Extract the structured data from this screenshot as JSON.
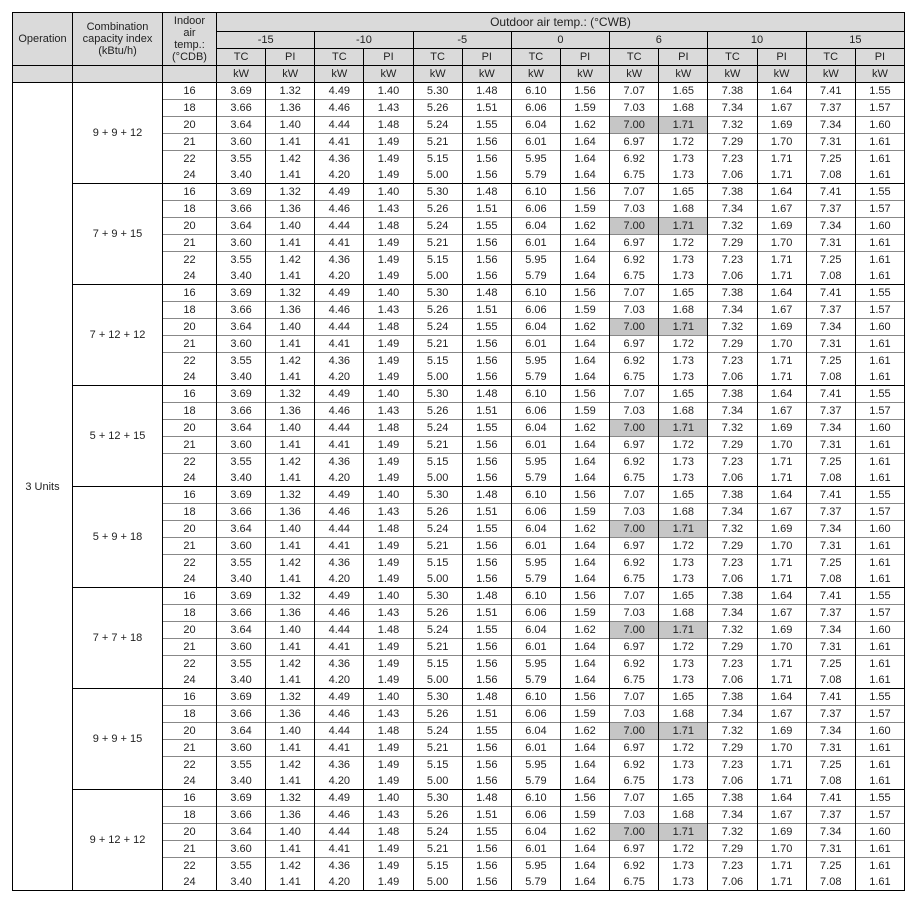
{
  "headers": {
    "operation": "Operation",
    "combo_l1": "Combination",
    "combo_l2": "capacity index",
    "combo_l3": "(kBtu/h)",
    "iat_l1": "Indoor",
    "iat_l2": "air temp.:",
    "iat_l3": "(°CDB)",
    "outdoor_title": "Outdoor air temp.: (°CWB)",
    "tc": "TC",
    "pi": "PI",
    "kw": "kW"
  },
  "outdoor_temps": [
    "-15",
    "-10",
    "-5",
    "0",
    "6",
    "10",
    "15"
  ],
  "operation_label": "3 Units",
  "indoor_temps": [
    "16",
    "18",
    "20",
    "21",
    "22",
    "24"
  ],
  "highlight_row_index": 2,
  "highlight_col_index": 4,
  "combos": [
    {
      "label": "9 + 9 + 12",
      "rows": [
        [
          "3.69",
          "1.32",
          "4.49",
          "1.40",
          "5.30",
          "1.48",
          "6.10",
          "1.56",
          "7.07",
          "1.65",
          "7.38",
          "1.64",
          "7.41",
          "1.55"
        ],
        [
          "3.66",
          "1.36",
          "4.46",
          "1.43",
          "5.26",
          "1.51",
          "6.06",
          "1.59",
          "7.03",
          "1.68",
          "7.34",
          "1.67",
          "7.37",
          "1.57"
        ],
        [
          "3.64",
          "1.40",
          "4.44",
          "1.48",
          "5.24",
          "1.55",
          "6.04",
          "1.62",
          "7.00",
          "1.71",
          "7.32",
          "1.69",
          "7.34",
          "1.60"
        ],
        [
          "3.60",
          "1.41",
          "4.41",
          "1.49",
          "5.21",
          "1.56",
          "6.01",
          "1.64",
          "6.97",
          "1.72",
          "7.29",
          "1.70",
          "7.31",
          "1.61"
        ],
        [
          "3.55",
          "1.42",
          "4.36",
          "1.49",
          "5.15",
          "1.56",
          "5.95",
          "1.64",
          "6.92",
          "1.73",
          "7.23",
          "1.71",
          "7.25",
          "1.61"
        ],
        [
          "3.40",
          "1.41",
          "4.20",
          "1.49",
          "5.00",
          "1.56",
          "5.79",
          "1.64",
          "6.75",
          "1.73",
          "7.06",
          "1.71",
          "7.08",
          "1.61"
        ]
      ]
    },
    {
      "label": "7 + 9 + 15",
      "rows": [
        [
          "3.69",
          "1.32",
          "4.49",
          "1.40",
          "5.30",
          "1.48",
          "6.10",
          "1.56",
          "7.07",
          "1.65",
          "7.38",
          "1.64",
          "7.41",
          "1.55"
        ],
        [
          "3.66",
          "1.36",
          "4.46",
          "1.43",
          "5.26",
          "1.51",
          "6.06",
          "1.59",
          "7.03",
          "1.68",
          "7.34",
          "1.67",
          "7.37",
          "1.57"
        ],
        [
          "3.64",
          "1.40",
          "4.44",
          "1.48",
          "5.24",
          "1.55",
          "6.04",
          "1.62",
          "7.00",
          "1.71",
          "7.32",
          "1.69",
          "7.34",
          "1.60"
        ],
        [
          "3.60",
          "1.41",
          "4.41",
          "1.49",
          "5.21",
          "1.56",
          "6.01",
          "1.64",
          "6.97",
          "1.72",
          "7.29",
          "1.70",
          "7.31",
          "1.61"
        ],
        [
          "3.55",
          "1.42",
          "4.36",
          "1.49",
          "5.15",
          "1.56",
          "5.95",
          "1.64",
          "6.92",
          "1.73",
          "7.23",
          "1.71",
          "7.25",
          "1.61"
        ],
        [
          "3.40",
          "1.41",
          "4.20",
          "1.49",
          "5.00",
          "1.56",
          "5.79",
          "1.64",
          "6.75",
          "1.73",
          "7.06",
          "1.71",
          "7.08",
          "1.61"
        ]
      ]
    },
    {
      "label": "7 + 12 + 12",
      "rows": [
        [
          "3.69",
          "1.32",
          "4.49",
          "1.40",
          "5.30",
          "1.48",
          "6.10",
          "1.56",
          "7.07",
          "1.65",
          "7.38",
          "1.64",
          "7.41",
          "1.55"
        ],
        [
          "3.66",
          "1.36",
          "4.46",
          "1.43",
          "5.26",
          "1.51",
          "6.06",
          "1.59",
          "7.03",
          "1.68",
          "7.34",
          "1.67",
          "7.37",
          "1.57"
        ],
        [
          "3.64",
          "1.40",
          "4.44",
          "1.48",
          "5.24",
          "1.55",
          "6.04",
          "1.62",
          "7.00",
          "1.71",
          "7.32",
          "1.69",
          "7.34",
          "1.60"
        ],
        [
          "3.60",
          "1.41",
          "4.41",
          "1.49",
          "5.21",
          "1.56",
          "6.01",
          "1.64",
          "6.97",
          "1.72",
          "7.29",
          "1.70",
          "7.31",
          "1.61"
        ],
        [
          "3.55",
          "1.42",
          "4.36",
          "1.49",
          "5.15",
          "1.56",
          "5.95",
          "1.64",
          "6.92",
          "1.73",
          "7.23",
          "1.71",
          "7.25",
          "1.61"
        ],
        [
          "3.40",
          "1.41",
          "4.20",
          "1.49",
          "5.00",
          "1.56",
          "5.79",
          "1.64",
          "6.75",
          "1.73",
          "7.06",
          "1.71",
          "7.08",
          "1.61"
        ]
      ]
    },
    {
      "label": "5 + 12 + 15",
      "rows": [
        [
          "3.69",
          "1.32",
          "4.49",
          "1.40",
          "5.30",
          "1.48",
          "6.10",
          "1.56",
          "7.07",
          "1.65",
          "7.38",
          "1.64",
          "7.41",
          "1.55"
        ],
        [
          "3.66",
          "1.36",
          "4.46",
          "1.43",
          "5.26",
          "1.51",
          "6.06",
          "1.59",
          "7.03",
          "1.68",
          "7.34",
          "1.67",
          "7.37",
          "1.57"
        ],
        [
          "3.64",
          "1.40",
          "4.44",
          "1.48",
          "5.24",
          "1.55",
          "6.04",
          "1.62",
          "7.00",
          "1.71",
          "7.32",
          "1.69",
          "7.34",
          "1.60"
        ],
        [
          "3.60",
          "1.41",
          "4.41",
          "1.49",
          "5.21",
          "1.56",
          "6.01",
          "1.64",
          "6.97",
          "1.72",
          "7.29",
          "1.70",
          "7.31",
          "1.61"
        ],
        [
          "3.55",
          "1.42",
          "4.36",
          "1.49",
          "5.15",
          "1.56",
          "5.95",
          "1.64",
          "6.92",
          "1.73",
          "7.23",
          "1.71",
          "7.25",
          "1.61"
        ],
        [
          "3.40",
          "1.41",
          "4.20",
          "1.49",
          "5.00",
          "1.56",
          "5.79",
          "1.64",
          "6.75",
          "1.73",
          "7.06",
          "1.71",
          "7.08",
          "1.61"
        ]
      ]
    },
    {
      "label": "5 + 9 + 18",
      "rows": [
        [
          "3.69",
          "1.32",
          "4.49",
          "1.40",
          "5.30",
          "1.48",
          "6.10",
          "1.56",
          "7.07",
          "1.65",
          "7.38",
          "1.64",
          "7.41",
          "1.55"
        ],
        [
          "3.66",
          "1.36",
          "4.46",
          "1.43",
          "5.26",
          "1.51",
          "6.06",
          "1.59",
          "7.03",
          "1.68",
          "7.34",
          "1.67",
          "7.37",
          "1.57"
        ],
        [
          "3.64",
          "1.40",
          "4.44",
          "1.48",
          "5.24",
          "1.55",
          "6.04",
          "1.62",
          "7.00",
          "1.71",
          "7.32",
          "1.69",
          "7.34",
          "1.60"
        ],
        [
          "3.60",
          "1.41",
          "4.41",
          "1.49",
          "5.21",
          "1.56",
          "6.01",
          "1.64",
          "6.97",
          "1.72",
          "7.29",
          "1.70",
          "7.31",
          "1.61"
        ],
        [
          "3.55",
          "1.42",
          "4.36",
          "1.49",
          "5.15",
          "1.56",
          "5.95",
          "1.64",
          "6.92",
          "1.73",
          "7.23",
          "1.71",
          "7.25",
          "1.61"
        ],
        [
          "3.40",
          "1.41",
          "4.20",
          "1.49",
          "5.00",
          "1.56",
          "5.79",
          "1.64",
          "6.75",
          "1.73",
          "7.06",
          "1.71",
          "7.08",
          "1.61"
        ]
      ]
    },
    {
      "label": "7 + 7 + 18",
      "rows": [
        [
          "3.69",
          "1.32",
          "4.49",
          "1.40",
          "5.30",
          "1.48",
          "6.10",
          "1.56",
          "7.07",
          "1.65",
          "7.38",
          "1.64",
          "7.41",
          "1.55"
        ],
        [
          "3.66",
          "1.36",
          "4.46",
          "1.43",
          "5.26",
          "1.51",
          "6.06",
          "1.59",
          "7.03",
          "1.68",
          "7.34",
          "1.67",
          "7.37",
          "1.57"
        ],
        [
          "3.64",
          "1.40",
          "4.44",
          "1.48",
          "5.24",
          "1.55",
          "6.04",
          "1.62",
          "7.00",
          "1.71",
          "7.32",
          "1.69",
          "7.34",
          "1.60"
        ],
        [
          "3.60",
          "1.41",
          "4.41",
          "1.49",
          "5.21",
          "1.56",
          "6.01",
          "1.64",
          "6.97",
          "1.72",
          "7.29",
          "1.70",
          "7.31",
          "1.61"
        ],
        [
          "3.55",
          "1.42",
          "4.36",
          "1.49",
          "5.15",
          "1.56",
          "5.95",
          "1.64",
          "6.92",
          "1.73",
          "7.23",
          "1.71",
          "7.25",
          "1.61"
        ],
        [
          "3.40",
          "1.41",
          "4.20",
          "1.49",
          "5.00",
          "1.56",
          "5.79",
          "1.64",
          "6.75",
          "1.73",
          "7.06",
          "1.71",
          "7.08",
          "1.61"
        ]
      ]
    },
    {
      "label": "9 + 9 + 15",
      "rows": [
        [
          "3.69",
          "1.32",
          "4.49",
          "1.40",
          "5.30",
          "1.48",
          "6.10",
          "1.56",
          "7.07",
          "1.65",
          "7.38",
          "1.64",
          "7.41",
          "1.55"
        ],
        [
          "3.66",
          "1.36",
          "4.46",
          "1.43",
          "5.26",
          "1.51",
          "6.06",
          "1.59",
          "7.03",
          "1.68",
          "7.34",
          "1.67",
          "7.37",
          "1.57"
        ],
        [
          "3.64",
          "1.40",
          "4.44",
          "1.48",
          "5.24",
          "1.55",
          "6.04",
          "1.62",
          "7.00",
          "1.71",
          "7.32",
          "1.69",
          "7.34",
          "1.60"
        ],
        [
          "3.60",
          "1.41",
          "4.41",
          "1.49",
          "5.21",
          "1.56",
          "6.01",
          "1.64",
          "6.97",
          "1.72",
          "7.29",
          "1.70",
          "7.31",
          "1.61"
        ],
        [
          "3.55",
          "1.42",
          "4.36",
          "1.49",
          "5.15",
          "1.56",
          "5.95",
          "1.64",
          "6.92",
          "1.73",
          "7.23",
          "1.71",
          "7.25",
          "1.61"
        ],
        [
          "3.40",
          "1.41",
          "4.20",
          "1.49",
          "5.00",
          "1.56",
          "5.79",
          "1.64",
          "6.75",
          "1.73",
          "7.06",
          "1.71",
          "7.08",
          "1.61"
        ]
      ]
    },
    {
      "label": "9 + 12 + 12",
      "rows": [
        [
          "3.69",
          "1.32",
          "4.49",
          "1.40",
          "5.30",
          "1.48",
          "6.10",
          "1.56",
          "7.07",
          "1.65",
          "7.38",
          "1.64",
          "7.41",
          "1.55"
        ],
        [
          "3.66",
          "1.36",
          "4.46",
          "1.43",
          "5.26",
          "1.51",
          "6.06",
          "1.59",
          "7.03",
          "1.68",
          "7.34",
          "1.67",
          "7.37",
          "1.57"
        ],
        [
          "3.64",
          "1.40",
          "4.44",
          "1.48",
          "5.24",
          "1.55",
          "6.04",
          "1.62",
          "7.00",
          "1.71",
          "7.32",
          "1.69",
          "7.34",
          "1.60"
        ],
        [
          "3.60",
          "1.41",
          "4.41",
          "1.49",
          "5.21",
          "1.56",
          "6.01",
          "1.64",
          "6.97",
          "1.72",
          "7.29",
          "1.70",
          "7.31",
          "1.61"
        ],
        [
          "3.55",
          "1.42",
          "4.36",
          "1.49",
          "5.15",
          "1.56",
          "5.95",
          "1.64",
          "6.92",
          "1.73",
          "7.23",
          "1.71",
          "7.25",
          "1.61"
        ],
        [
          "3.40",
          "1.41",
          "4.20",
          "1.49",
          "5.00",
          "1.56",
          "5.79",
          "1.64",
          "6.75",
          "1.73",
          "7.06",
          "1.71",
          "7.08",
          "1.61"
        ]
      ]
    }
  ]
}
